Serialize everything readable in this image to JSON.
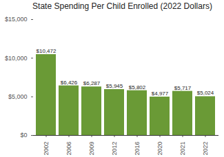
{
  "chart_data": {
    "type": "bar",
    "title": "State Spending Per Child Enrolled (2022 Dollars)",
    "categories": [
      "2002",
      "2006",
      "2009",
      "2012",
      "2016",
      "2020",
      "2021",
      "2022"
    ],
    "values": [
      10472,
      6426,
      6287,
      5945,
      5802,
      4977,
      5717,
      5024
    ],
    "value_labels": [
      "$10,472",
      "$6,426",
      "$6,287",
      "$5,945",
      "$5,802",
      "$4,977",
      "$5,717",
      "$5,024"
    ],
    "data_labels": true,
    "color": "#6a9a36",
    "ylim": [
      0,
      15000
    ],
    "yticks": [
      {
        "value": 0,
        "label": "$0"
      },
      {
        "value": 5000,
        "label": "$5,000"
      },
      {
        "value": 10000,
        "label": "$10,000"
      },
      {
        "value": 15000,
        "label": "$15,000"
      }
    ],
    "grid": false
  }
}
